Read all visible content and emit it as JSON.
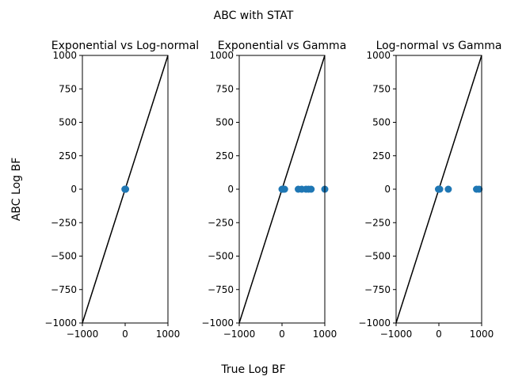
{
  "figure": {
    "suptitle": "ABC with STAT",
    "xlabel": "True Log BF",
    "ylabel": "ABC Log BF"
  },
  "colors": {
    "points": "#1f77b4",
    "line": "#000000",
    "axes": "#000000"
  },
  "chart_data": [
    {
      "type": "scatter",
      "title": "Exponential vs Log-normal",
      "xlim": [
        -1000,
        1000
      ],
      "ylim": [
        -1000,
        1000
      ],
      "xticks": [
        -1000,
        0,
        1000
      ],
      "yticks": [
        -1000,
        -750,
        -500,
        -250,
        0,
        250,
        500,
        750,
        1000
      ],
      "reference_line": [
        [
          -1000,
          -1000
        ],
        [
          1000,
          1000
        ]
      ],
      "points": [
        {
          "x": -5,
          "y": 0
        },
        {
          "x": 0,
          "y": 0
        },
        {
          "x": 3,
          "y": 0
        },
        {
          "x": 8,
          "y": 0
        },
        {
          "x": -2,
          "y": 0
        },
        {
          "x": 10,
          "y": 0
        }
      ]
    },
    {
      "type": "scatter",
      "title": "Exponential vs Gamma",
      "xlim": [
        -1000,
        1000
      ],
      "ylim": [
        -1000,
        1000
      ],
      "xticks": [
        -1000,
        0,
        1000
      ],
      "yticks": [
        -1000,
        -750,
        -500,
        -250,
        0,
        250,
        500,
        750,
        1000
      ],
      "reference_line": [
        [
          -1000,
          -1000
        ],
        [
          1000,
          1000
        ]
      ],
      "points": [
        {
          "x": 0,
          "y": 0
        },
        {
          "x": 20,
          "y": 0
        },
        {
          "x": 60,
          "y": 0
        },
        {
          "x": 380,
          "y": 0
        },
        {
          "x": 460,
          "y": 0
        },
        {
          "x": 560,
          "y": 0
        },
        {
          "x": 620,
          "y": 0
        },
        {
          "x": 680,
          "y": 0
        },
        {
          "x": 1000,
          "y": 0
        }
      ]
    },
    {
      "type": "scatter",
      "title": "Log-normal vs Gamma",
      "xlim": [
        -1000,
        1000
      ],
      "ylim": [
        -1000,
        1000
      ],
      "xticks": [
        -1000,
        0,
        1000
      ],
      "yticks": [
        -1000,
        -750,
        -500,
        -250,
        0,
        250,
        500,
        750,
        1000
      ],
      "reference_line": [
        [
          -1000,
          -1000
        ],
        [
          1000,
          1000
        ]
      ],
      "points": [
        {
          "x": -10,
          "y": 0
        },
        {
          "x": 0,
          "y": 0
        },
        {
          "x": 20,
          "y": 0
        },
        {
          "x": 220,
          "y": 0
        },
        {
          "x": 880,
          "y": 0
        },
        {
          "x": 940,
          "y": 0
        }
      ]
    }
  ]
}
